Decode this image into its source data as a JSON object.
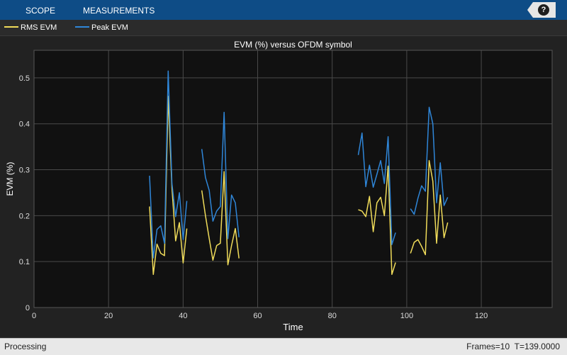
{
  "toolstrip": {
    "tabs": [
      "SCOPE",
      "MEASUREMENTS"
    ],
    "help_label": "?"
  },
  "colors": {
    "toolstrip": "#0e4c86",
    "axes_bg": "#111111",
    "figure_bg": "#222222",
    "grid": "#4a4a4a",
    "rms": "#f0dc5a",
    "peak": "#2f86d8"
  },
  "status": {
    "left": "Processing",
    "frames": "Frames=10",
    "time": "T=139.0000"
  },
  "chart_data": {
    "type": "line",
    "title": "EVM (%) versus OFDM symbol",
    "xlabel": "Time",
    "ylabel": "EVM (%)",
    "xlim": [
      0,
      139
    ],
    "ylim": [
      0,
      0.56
    ],
    "xticks": [
      0,
      20,
      40,
      60,
      80,
      100,
      120
    ],
    "yticks": [
      0,
      0.1,
      0.2,
      0.3,
      0.4,
      0.5
    ],
    "grid": true,
    "legend": "top-left (outside axes)",
    "series": [
      {
        "name": "RMS EVM",
        "color": "#f0dc5a",
        "segments": [
          [
            [
              31,
              0.22
            ],
            [
              32,
              0.072
            ],
            [
              33,
              0.138
            ],
            [
              34,
              0.118
            ],
            [
              35,
              0.113
            ],
            [
              36,
              0.46
            ],
            [
              37,
              0.26
            ],
            [
              38,
              0.145
            ],
            [
              39,
              0.185
            ],
            [
              40,
              0.097
            ],
            [
              41,
              0.172
            ]
          ],
          [
            [
              45,
              0.255
            ],
            [
              46,
              0.2
            ],
            [
              47,
              0.15
            ],
            [
              48,
              0.103
            ],
            [
              49,
              0.135
            ],
            [
              50,
              0.14
            ],
            [
              51,
              0.296
            ],
            [
              52,
              0.093
            ],
            [
              53,
              0.135
            ],
            [
              54,
              0.172
            ],
            [
              55,
              0.107
            ]
          ],
          [
            [
              87,
              0.213
            ],
            [
              88,
              0.21
            ],
            [
              89,
              0.198
            ],
            [
              90,
              0.242
            ],
            [
              91,
              0.165
            ],
            [
              92,
              0.228
            ],
            [
              93,
              0.24
            ],
            [
              94,
              0.2
            ],
            [
              95,
              0.308
            ],
            [
              96,
              0.072
            ],
            [
              97,
              0.098
            ]
          ],
          [
            [
              101,
              0.118
            ],
            [
              102,
              0.142
            ],
            [
              103,
              0.148
            ],
            [
              104,
              0.133
            ],
            [
              105,
              0.115
            ],
            [
              106,
              0.32
            ],
            [
              107,
              0.275
            ],
            [
              108,
              0.14
            ],
            [
              109,
              0.245
            ],
            [
              110,
              0.152
            ],
            [
              111,
              0.185
            ]
          ]
        ]
      },
      {
        "name": "Peak EVM",
        "color": "#2f86d8",
        "segments": [
          [
            [
              31,
              0.287
            ],
            [
              32,
              0.108
            ],
            [
              33,
              0.17
            ],
            [
              34,
              0.178
            ],
            [
              35,
              0.14
            ],
            [
              36,
              0.515
            ],
            [
              37,
              0.27
            ],
            [
              38,
              0.198
            ],
            [
              39,
              0.25
            ],
            [
              40,
              0.148
            ],
            [
              41,
              0.232
            ]
          ],
          [
            [
              45,
              0.345
            ],
            [
              46,
              0.283
            ],
            [
              47,
              0.255
            ],
            [
              48,
              0.188
            ],
            [
              49,
              0.21
            ],
            [
              50,
              0.22
            ],
            [
              51,
              0.425
            ],
            [
              52,
              0.15
            ],
            [
              53,
              0.245
            ],
            [
              54,
              0.228
            ],
            [
              55,
              0.153
            ]
          ],
          [
            [
              87,
              0.332
            ],
            [
              88,
              0.38
            ],
            [
              89,
              0.263
            ],
            [
              90,
              0.31
            ],
            [
              91,
              0.262
            ],
            [
              92,
              0.29
            ],
            [
              93,
              0.32
            ],
            [
              94,
              0.27
            ],
            [
              95,
              0.372
            ],
            [
              96,
              0.137
            ],
            [
              97,
              0.163
            ]
          ],
          [
            [
              101,
              0.215
            ],
            [
              102,
              0.203
            ],
            [
              103,
              0.238
            ],
            [
              104,
              0.265
            ],
            [
              105,
              0.253
            ],
            [
              106,
              0.436
            ],
            [
              107,
              0.4
            ],
            [
              108,
              0.228
            ],
            [
              109,
              0.315
            ],
            [
              110,
              0.222
            ],
            [
              111,
              0.24
            ]
          ]
        ]
      }
    ]
  }
}
